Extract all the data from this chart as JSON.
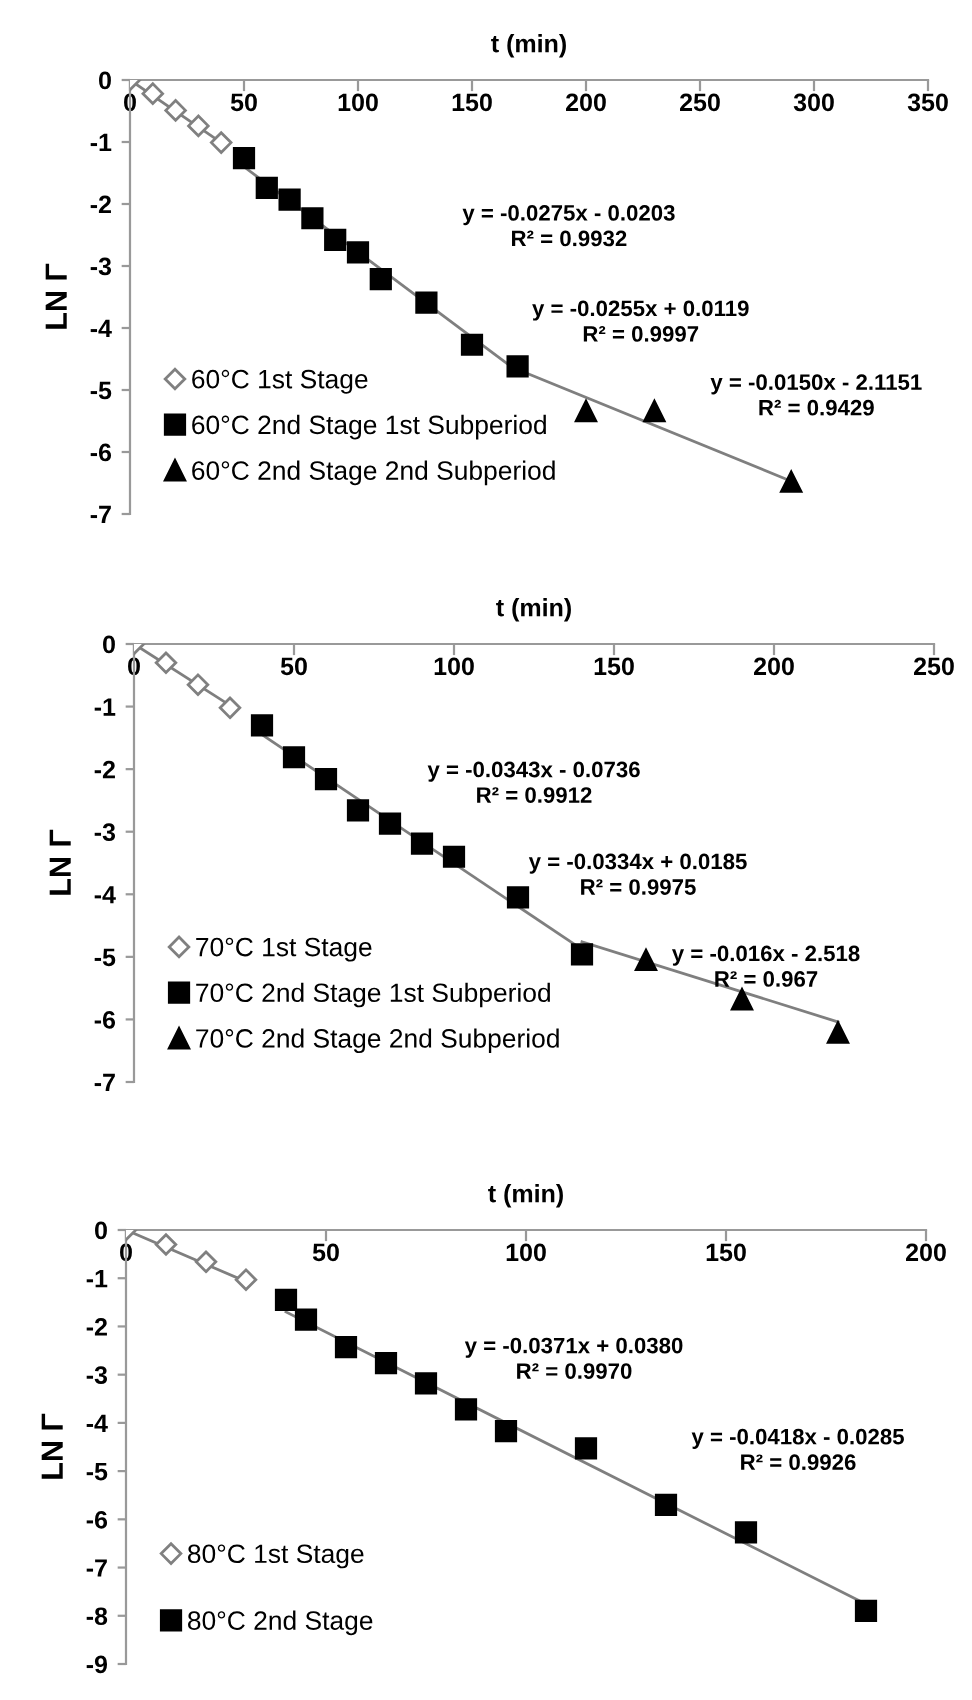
{
  "chart_data": [
    {
      "type": "scatter",
      "xlabel": "t (min)",
      "ylabel": "LN Γ",
      "xlim": [
        0,
        350
      ],
      "xticks": [
        0,
        50,
        100,
        150,
        200,
        250,
        300,
        350
      ],
      "ylim": [
        -7,
        0
      ],
      "yticks": [
        -7,
        -6,
        -5,
        -4,
        -3,
        -2,
        -1,
        0
      ],
      "grid": false,
      "legend": "bottom left",
      "annotations": [
        "y = -0.0275x - 0.0203\nR² = 0.9932",
        "y = -0.0255x + 0.0119\nR² = 0.9997",
        "y = -0.0150x - 2.1151\nR² = 0.9429"
      ],
      "series": [
        {
          "name": "60°C 1st Stage",
          "marker": "diamond",
          "color": "#808080",
          "x": [
            0,
            10,
            20,
            30,
            40
          ],
          "values": [
            0,
            -0.22,
            -0.49,
            -0.74,
            -1.01
          ]
        },
        {
          "name": "60°C 2nd Stage 1st Subperiod",
          "marker": "square",
          "color": "#000000",
          "x": [
            50,
            60,
            70,
            80,
            90,
            100,
            110,
            130,
            150,
            170
          ],
          "values": [
            -1.26,
            -1.74,
            -1.93,
            -2.23,
            -2.58,
            -2.78,
            -3.21,
            -3.59,
            -4.27,
            -4.62
          ]
        },
        {
          "name": "60°C 2nd Stage 2nd Subperiod",
          "marker": "triangle",
          "color": "#000000",
          "x": [
            200,
            230,
            290
          ],
          "values": [
            -5.34,
            -5.34,
            -6.48
          ]
        },
        {
          "type": "line",
          "marker": "none",
          "color": "#7f7f7f",
          "x": [
            0,
            40
          ],
          "values": [
            0,
            -1.01
          ]
        },
        {
          "type": "line",
          "marker": "none",
          "color": "#7f7f7f",
          "x": [
            50,
            170
          ],
          "values": [
            -1.4,
            -4.7
          ]
        },
        {
          "type": "line",
          "marker": "none",
          "color": "#7f7f7f",
          "x": [
            170,
            290
          ],
          "values": [
            -4.67,
            -6.47
          ]
        }
      ]
    },
    {
      "type": "scatter",
      "xlabel": "t (min)",
      "ylabel": "LN Γ",
      "xlim": [
        0,
        250
      ],
      "xticks": [
        0,
        50,
        100,
        150,
        200,
        250
      ],
      "ylim": [
        -7,
        0
      ],
      "yticks": [
        -7,
        -6,
        -5,
        -4,
        -3,
        -2,
        -1,
        0
      ],
      "grid": false,
      "legend": "bottom left",
      "annotations": [
        "y = -0.0343x - 0.0736\nR² = 0.9912",
        "y = -0.0334x + 0.0185\nR² = 0.9975",
        "y = -0.016x - 2.518\nR² = 0.967"
      ],
      "series": [
        {
          "name": "70°C 1st Stage",
          "marker": "diamond",
          "color": "#808080",
          "x": [
            0,
            10,
            20,
            30
          ],
          "values": [
            0,
            -0.3,
            -0.65,
            -1.02
          ]
        },
        {
          "name": "70°C 2nd Stage 1st Subperiod",
          "marker": "square",
          "color": "#000000",
          "x": [
            40,
            50,
            60,
            70,
            80,
            90,
            100,
            120,
            140
          ],
          "values": [
            -1.3,
            -1.81,
            -2.16,
            -2.66,
            -2.87,
            -3.19,
            -3.4,
            -4.05,
            -4.96
          ]
        },
        {
          "name": "70°C 2nd Stage 2nd Subperiod",
          "marker": "triangle",
          "color": "#000000",
          "x": [
            160,
            190,
            220
          ],
          "values": [
            -5.05,
            -5.68,
            -6.21
          ]
        },
        {
          "type": "line",
          "marker": "none",
          "color": "#7f7f7f",
          "x": [
            0,
            30
          ],
          "values": [
            0,
            -0.98
          ]
        },
        {
          "type": "line",
          "marker": "none",
          "color": "#7f7f7f",
          "x": [
            40,
            140
          ],
          "values": [
            -1.45,
            -4.88
          ]
        },
        {
          "type": "line",
          "marker": "none",
          "color": "#7f7f7f",
          "x": [
            140,
            220
          ],
          "values": [
            -4.76,
            -6.04
          ]
        }
      ]
    },
    {
      "type": "scatter",
      "xlabel": "t (min)",
      "ylabel": "LN Γ",
      "xlim": [
        0,
        200
      ],
      "xticks": [
        0,
        50,
        100,
        150,
        200
      ],
      "ylim": [
        -9,
        0
      ],
      "yticks": [
        -9,
        -8,
        -7,
        -6,
        -5,
        -4,
        -3,
        -2,
        -1,
        0
      ],
      "grid": false,
      "legend": "bottom left",
      "annotations": [
        "y = -0.0371x + 0.0380\nR² = 0.9970",
        "y = -0.0418x - 0.0285\nR² = 0.9926"
      ],
      "series": [
        {
          "name": "80°C 1st Stage",
          "marker": "diamond",
          "color": "#808080",
          "x": [
            0,
            10,
            20,
            30
          ],
          "values": [
            0,
            -0.3,
            -0.66,
            -1.03
          ]
        },
        {
          "name": "80°C 2nd Stage",
          "marker": "square",
          "color": "#000000",
          "x": [
            40,
            45,
            55,
            65,
            75,
            85,
            95,
            115,
            135,
            155,
            185
          ],
          "values": [
            -1.45,
            -1.86,
            -2.43,
            -2.76,
            -3.18,
            -3.72,
            -4.17,
            -4.53,
            -5.7,
            -6.27,
            -7.9
          ]
        },
        {
          "type": "line",
          "marker": "none",
          "color": "#7f7f7f",
          "x": [
            0,
            30
          ],
          "values": [
            0,
            -1.07
          ]
        },
        {
          "type": "line",
          "marker": "none",
          "color": "#7f7f7f",
          "x": [
            40,
            185
          ],
          "values": [
            -1.7,
            -7.76
          ]
        }
      ]
    }
  ]
}
